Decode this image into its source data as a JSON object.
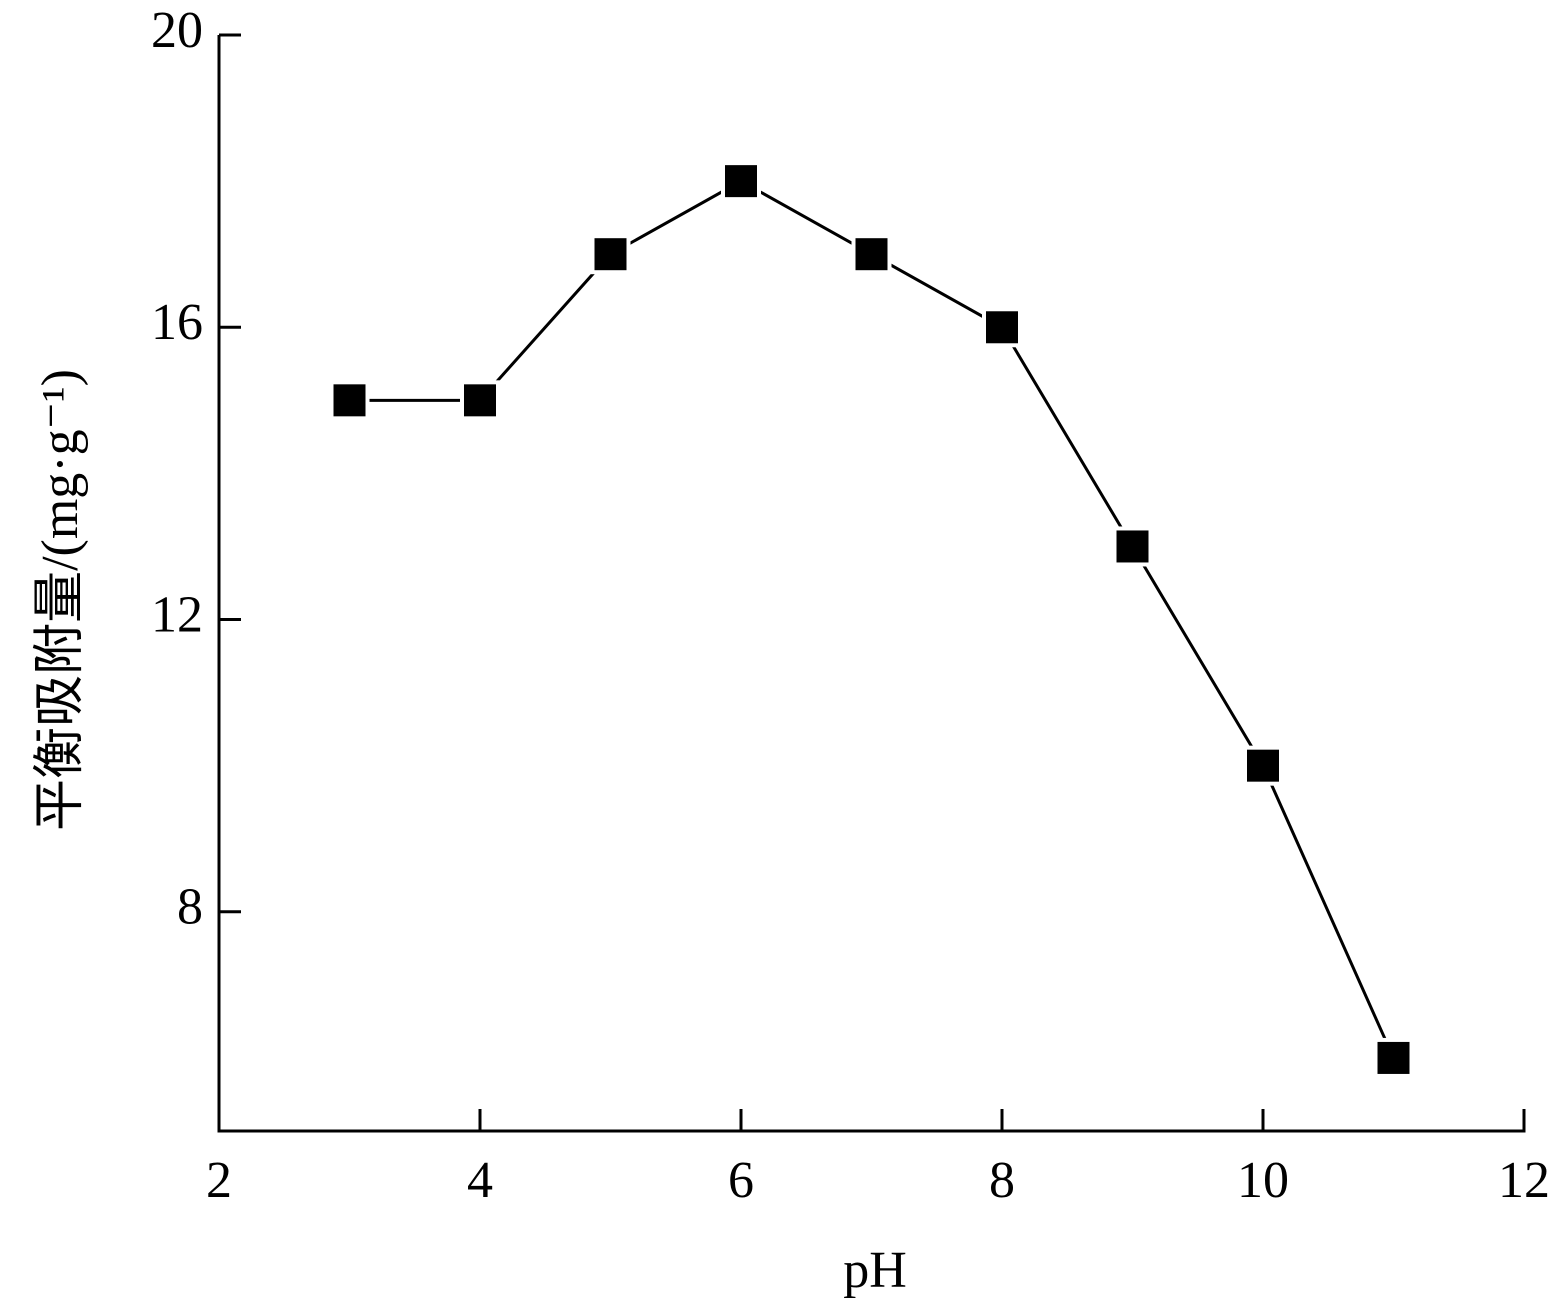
{
  "chart_data": {
    "type": "line",
    "x_label": "pH",
    "y_label": "平衡吸附量/(mg·g⁻¹)",
    "x": [
      3,
      4,
      5,
      6,
      7,
      8,
      9,
      10,
      11
    ],
    "series": [
      {
        "name": "pH",
        "color": "#000000",
        "values": [
          15,
          15,
          17,
          18,
          17,
          16,
          13,
          10,
          6
        ]
      }
    ],
    "xlim": [
      2,
      12
    ],
    "xticks": [
      2,
      4,
      6,
      8,
      10,
      12
    ],
    "ylim": [
      5,
      20
    ],
    "yticks": [
      8,
      12,
      16,
      20
    ],
    "marker": "square"
  }
}
